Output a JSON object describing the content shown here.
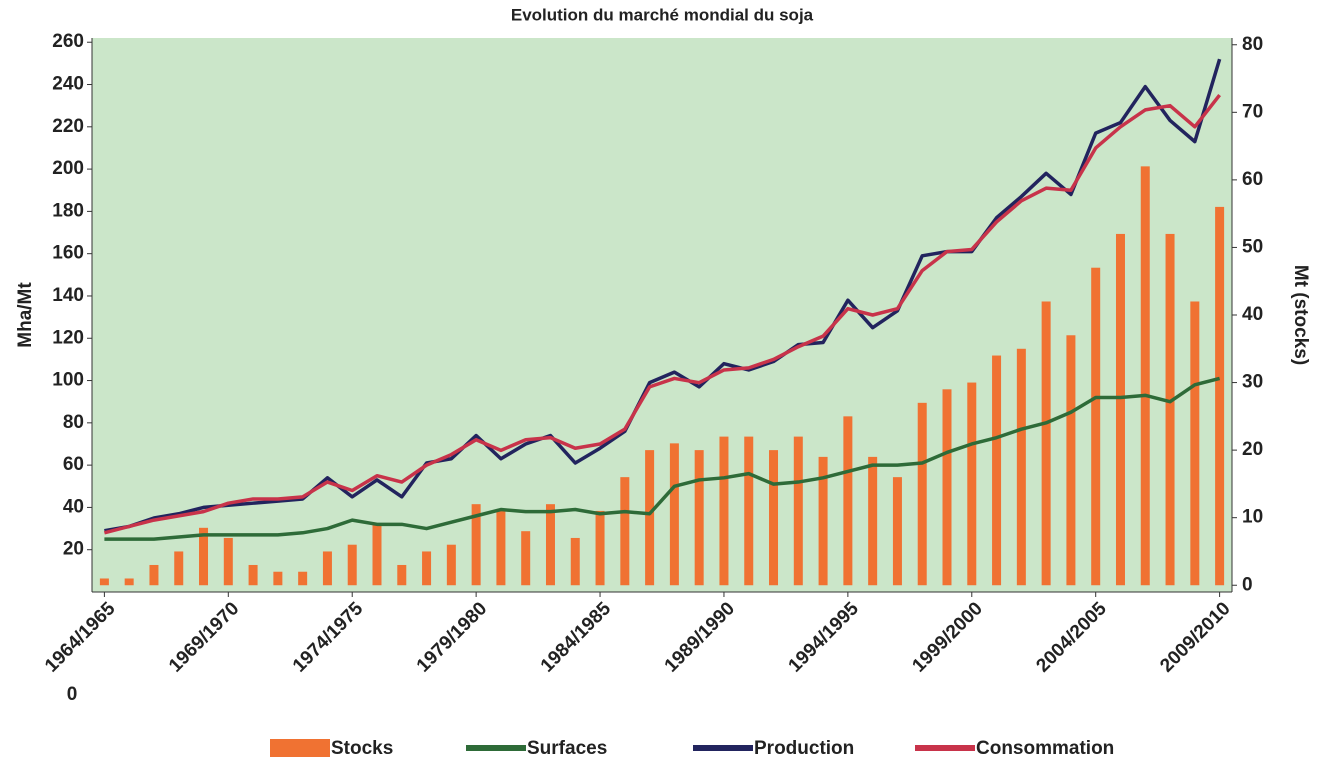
{
  "chart_data": {
    "type": "bar-line",
    "title": "Evolution du marché mondial du soja",
    "y_label": "Mha/Mt",
    "y2_label": "Mt (stocks)",
    "annotations": [
      "0"
    ],
    "categories": [
      "1964/1965",
      null,
      null,
      null,
      null,
      "1969/1970",
      null,
      null,
      null,
      null,
      "1974/1975",
      null,
      null,
      null,
      null,
      "1979/1980",
      null,
      null,
      null,
      null,
      "1984/1985",
      null,
      null,
      null,
      null,
      "1989/1990",
      null,
      null,
      null,
      null,
      "1994/1995",
      null,
      null,
      null,
      null,
      "1999/2000",
      null,
      null,
      null,
      null,
      "2004/2005",
      null,
      null,
      null,
      null,
      "2009/2010"
    ],
    "ylim": [
      0,
      262
    ],
    "yticks": [
      20,
      40,
      60,
      80,
      100,
      120,
      140,
      160,
      180,
      200,
      220,
      240,
      260
    ],
    "y2lim": [
      -1,
      81
    ],
    "y2ticks": [
      0,
      10,
      20,
      30,
      40,
      50,
      60,
      70,
      80
    ],
    "background": "#cbe6c9",
    "series": [
      {
        "name": "Stocks",
        "type": "bar",
        "axis": "y2",
        "color": "#f07232",
        "values": [
          1,
          1,
          3,
          5,
          8.5,
          7,
          3,
          2,
          2,
          5,
          6,
          9,
          3,
          5,
          6,
          12,
          11,
          8,
          12,
          7,
          11,
          16,
          20,
          21,
          20,
          22,
          22,
          20,
          22,
          19,
          25,
          19,
          16,
          27,
          29,
          30,
          34,
          35,
          42,
          37,
          47,
          52,
          62,
          52,
          42,
          56
        ]
      },
      {
        "name": "Surfaces",
        "type": "line",
        "color": "#2e6b38",
        "values": [
          25,
          25,
          25,
          26,
          27,
          27,
          27,
          27,
          28,
          30,
          34,
          32,
          32,
          30,
          33,
          36,
          39,
          38,
          38,
          39,
          37,
          38,
          37,
          50,
          53,
          54,
          56,
          51,
          52,
          54,
          57,
          60,
          60,
          61,
          66,
          70,
          73,
          77,
          80,
          85,
          92,
          92,
          93,
          90,
          98,
          101
        ]
      },
      {
        "name": "Production",
        "type": "line",
        "color": "#22245e",
        "values": [
          29,
          31,
          35,
          37,
          40,
          41,
          42,
          43,
          44,
          54,
          45,
          53,
          45,
          61,
          63,
          74,
          63,
          70,
          74,
          61,
          68,
          76,
          99,
          104,
          97,
          108,
          105,
          109,
          117,
          118,
          138,
          125,
          133,
          159,
          161,
          161,
          177,
          187,
          198,
          188,
          217,
          222,
          239,
          223,
          213,
          252
        ]
      },
      {
        "name": "Consommation",
        "type": "line",
        "color": "#c8334a",
        "values": [
          28,
          31,
          34,
          36,
          38,
          42,
          44,
          44,
          45,
          52,
          48,
          55,
          52,
          60,
          65,
          72,
          67,
          72,
          73,
          68,
          70,
          77,
          97,
          101,
          99,
          105,
          106,
          110,
          116,
          121,
          134,
          131,
          134,
          152,
          161,
          162,
          175,
          185,
          191,
          190,
          210,
          220,
          228,
          230,
          220,
          235
        ]
      }
    ]
  }
}
